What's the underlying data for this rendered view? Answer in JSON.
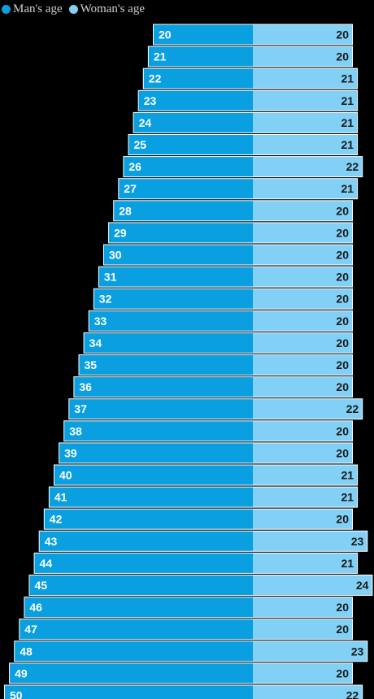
{
  "legend": {
    "men_label": "Man's age",
    "women_label": "Woman's age"
  },
  "colors": {
    "men": "#0a9fe0",
    "women": "#82d0f5",
    "outline": "#ffffff"
  },
  "chart_data": {
    "type": "bar",
    "orientation": "horizontal",
    "title": "",
    "xlabel": "",
    "ylabel": "",
    "grid": false,
    "legend_position": "top-left",
    "series": [
      {
        "name": "Man's age",
        "values": [
          20,
          21,
          22,
          23,
          24,
          25,
          26,
          27,
          28,
          29,
          30,
          31,
          32,
          33,
          34,
          35,
          36,
          37,
          38,
          39,
          40,
          41,
          42,
          43,
          44,
          45,
          46,
          47,
          48,
          49,
          50
        ]
      },
      {
        "name": "Woman's age",
        "values": [
          20,
          20,
          21,
          21,
          21,
          21,
          22,
          21,
          20,
          20,
          20,
          20,
          20,
          20,
          20,
          20,
          20,
          22,
          20,
          20,
          21,
          21,
          20,
          23,
          21,
          24,
          20,
          20,
          23,
          20,
          22
        ]
      }
    ]
  }
}
